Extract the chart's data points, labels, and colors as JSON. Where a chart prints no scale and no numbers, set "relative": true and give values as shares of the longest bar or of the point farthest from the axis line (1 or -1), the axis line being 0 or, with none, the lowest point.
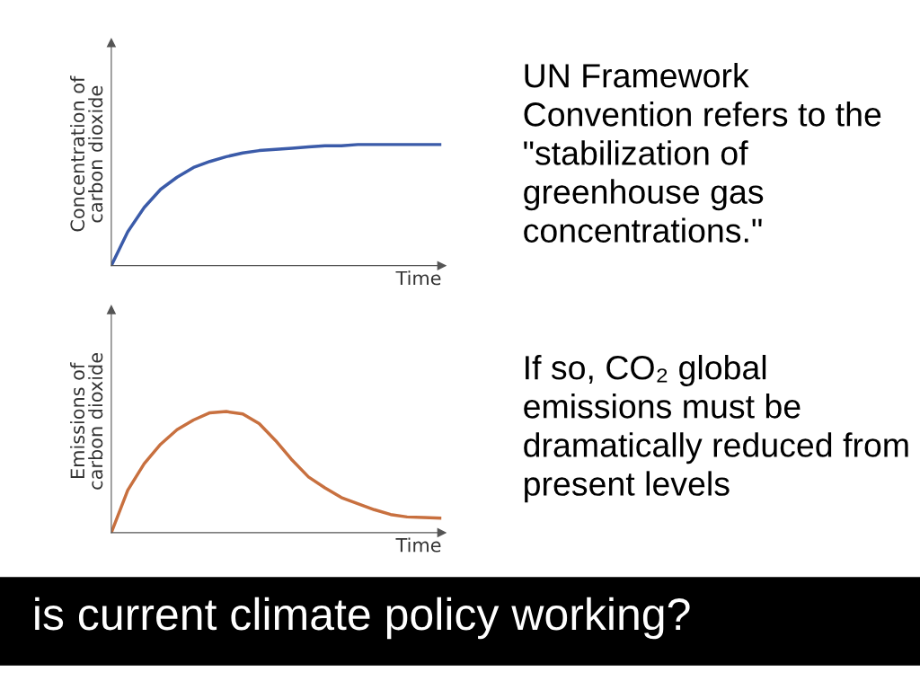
{
  "chart_data": [
    {
      "type": "line",
      "relative": true,
      "xlabel": "Time",
      "ylabel": "Concentration of\ncarbon dioxide",
      "categories": [
        null,
        null,
        null,
        null,
        null,
        null,
        null,
        null,
        null,
        null,
        null,
        null,
        null,
        null,
        null,
        null,
        null,
        null,
        null,
        null,
        null
      ],
      "series": [
        {
          "color": "#3b5ba9",
          "values": [
            0,
            0.28,
            0.48,
            0.63,
            0.73,
            0.81,
            0.86,
            0.9,
            0.93,
            0.95,
            0.96,
            0.97,
            0.98,
            0.99,
            0.99,
            1,
            1,
            1,
            1,
            1,
            1
          ]
        }
      ],
      "tick_labels": false,
      "marker": "none",
      "line_style": "solid"
    },
    {
      "type": "line",
      "relative": true,
      "xlabel": "Time",
      "ylabel": "Emissions of\ncarbon dioxide",
      "categories": [
        null,
        null,
        null,
        null,
        null,
        null,
        null,
        null,
        null,
        null,
        null,
        null,
        null,
        null,
        null,
        null,
        null,
        null,
        null,
        null,
        null
      ],
      "series": [
        {
          "color": "#c8703f",
          "values": [
            0,
            0.35,
            0.57,
            0.73,
            0.85,
            0.93,
            0.99,
            1,
            0.98,
            0.9,
            0.76,
            0.6,
            0.46,
            0.37,
            0.29,
            0.24,
            0.19,
            0.15,
            0.13,
            0.125,
            0.12
          ]
        }
      ],
      "tick_labels": false,
      "marker": "none",
      "line_style": "solid"
    },
    {
      "type": "other",
      "title": "is current climate policy working?",
      "annotations": [
        "UN Framework Convention refers to the \"stabilization of greenhouse gas concentrations.\"",
        "If so, CO₂ global emissions must be dramatically reduced from present levels"
      ]
    }
  ]
}
